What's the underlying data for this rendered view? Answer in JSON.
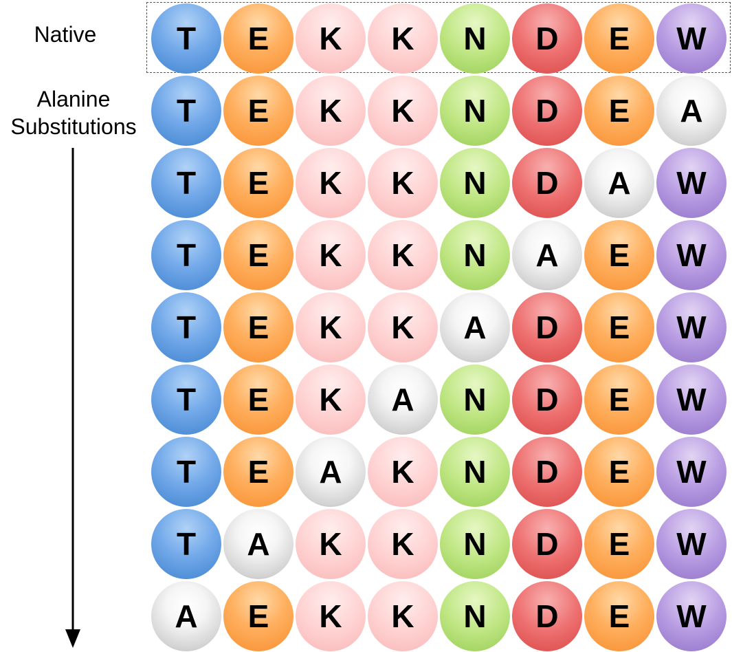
{
  "labels": {
    "native": "Native",
    "substitutions": "Alanine\nSubstitutions"
  },
  "native_sequence": [
    "T",
    "E",
    "K",
    "K",
    "N",
    "D",
    "E",
    "W"
  ],
  "rows": [
    [
      "T",
      "E",
      "K",
      "K",
      "N",
      "D",
      "E",
      "W"
    ],
    [
      "T",
      "E",
      "K",
      "K",
      "N",
      "D",
      "E",
      "A"
    ],
    [
      "T",
      "E",
      "K",
      "K",
      "N",
      "D",
      "A",
      "W"
    ],
    [
      "T",
      "E",
      "K",
      "K",
      "N",
      "A",
      "E",
      "W"
    ],
    [
      "T",
      "E",
      "K",
      "K",
      "A",
      "D",
      "E",
      "W"
    ],
    [
      "T",
      "E",
      "K",
      "A",
      "N",
      "D",
      "E",
      "W"
    ],
    [
      "T",
      "E",
      "A",
      "K",
      "N",
      "D",
      "E",
      "W"
    ],
    [
      "T",
      "A",
      "K",
      "K",
      "N",
      "D",
      "E",
      "W"
    ],
    [
      "A",
      "E",
      "K",
      "K",
      "N",
      "D",
      "E",
      "W"
    ]
  ],
  "colors": {
    "T": "#5b9ae0",
    "E": "#ffa54f",
    "K": "#ffcfcf",
    "N": "#b0de74",
    "D": "#e65c5c",
    "W": "#a98bd9",
    "A": "#d9d9d9"
  }
}
